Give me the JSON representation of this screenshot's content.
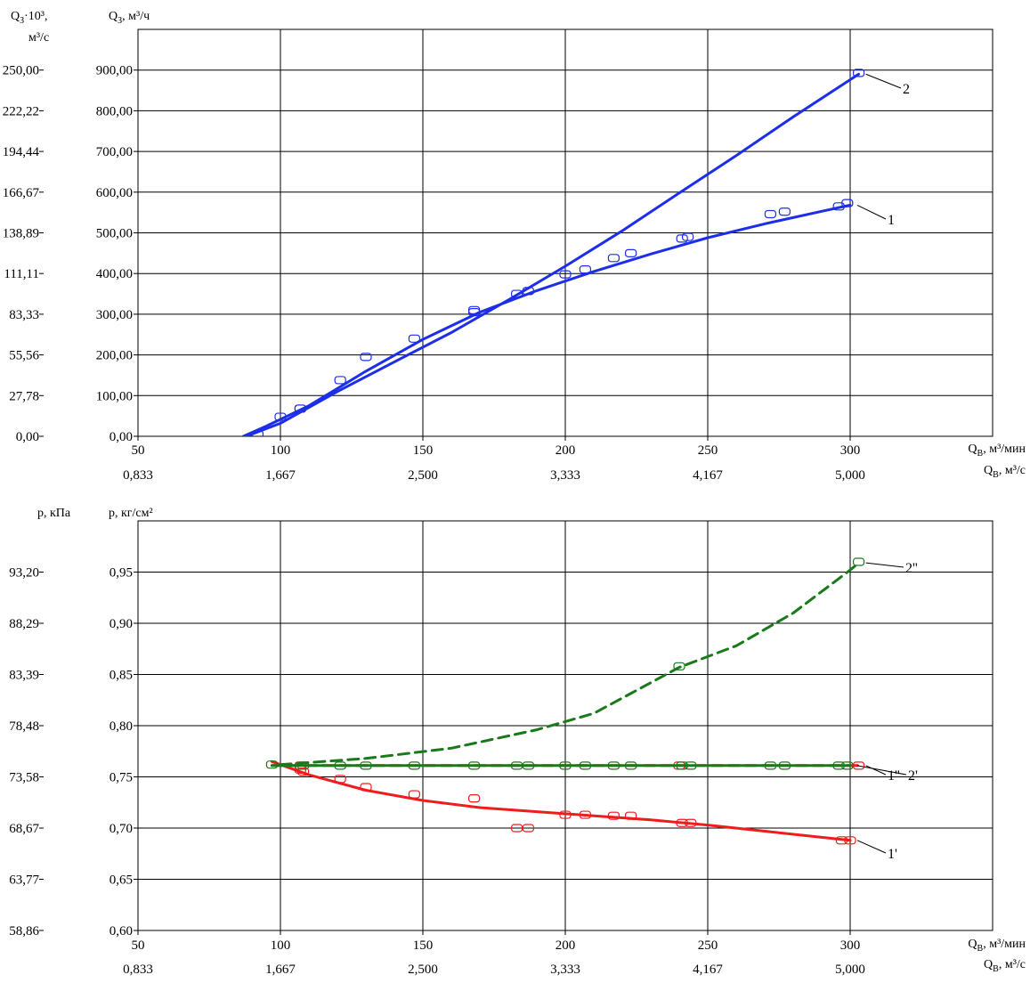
{
  "colors": {
    "blue": "#1c2ee8",
    "red": "#ee1c1c",
    "green": "#1a7a1a",
    "grid": "#000000"
  },
  "chart_data": [
    {
      "type": "line",
      "x_label_main": "Q",
      "x_label_main_sub": "В",
      "x_label_main_unit": ", м³/мин",
      "x_label_alt": "Q",
      "x_label_alt_sub": "В",
      "x_label_alt_unit": ", м³/с",
      "y_label_main": "Q",
      "y_label_main_sub": "З",
      "y_label_main_unit": ", м³/ч",
      "y_label_alt_line1": "·10³,",
      "y_label_alt_line1_prefix": "Q",
      "y_label_alt_line1_sub": "З",
      "y_label_alt_line2": "м³/с",
      "xlim": [
        50,
        350
      ],
      "ylim": [
        0,
        1000
      ],
      "x_ticks": [
        50,
        100,
        150,
        200,
        250,
        300
      ],
      "x_tick_labels": [
        "50",
        "100",
        "150",
        "200",
        "250",
        "300"
      ],
      "x_alt_tick_labels": [
        "0,833",
        "1,667",
        "2,500",
        "3,333",
        "4,167",
        "5,000"
      ],
      "y_ticks": [
        0,
        100,
        200,
        300,
        400,
        500,
        600,
        700,
        800,
        900
      ],
      "y_tick_labels": [
        "0,00",
        "100,00",
        "200,00",
        "300,00",
        "400,00",
        "500,00",
        "600,00",
        "700,00",
        "800,00",
        "900,00"
      ],
      "y_alt_tick_labels": [
        "0,00",
        "27,78",
        "55,56",
        "83,33",
        "111,11",
        "138,89",
        "166,67",
        "194,44",
        "222,22",
        "250,00"
      ],
      "grid": true,
      "series": [
        {
          "name": "1",
          "color": "blue",
          "dashed": false,
          "curve": [
            [
              87,
              0
            ],
            [
              95,
              25
            ],
            [
              110,
              75
            ],
            [
              130,
              160
            ],
            [
              150,
              238
            ],
            [
              170,
              305
            ],
            [
              190,
              358
            ],
            [
              210,
              405
            ],
            [
              230,
              448
            ],
            [
              250,
              488
            ],
            [
              270,
              522
            ],
            [
              290,
              553
            ],
            [
              300,
              568
            ]
          ],
          "points": [
            [
              92,
              5
            ],
            [
              100,
              48
            ],
            [
              107,
              68
            ],
            [
              121,
              138
            ],
            [
              147,
              240
            ],
            [
              168,
              305
            ],
            [
              183,
              350
            ],
            [
              187,
              357
            ],
            [
              200,
              398
            ],
            [
              207,
              410
            ],
            [
              217,
              438
            ],
            [
              223,
              450
            ],
            [
              241,
              486
            ],
            [
              243,
              490
            ],
            [
              272,
              546
            ],
            [
              277,
              552
            ],
            [
              296,
              565
            ],
            [
              299,
              573
            ]
          ]
        },
        {
          "name": "2",
          "color": "blue",
          "dashed": false,
          "curve": [
            [
              88,
              0
            ],
            [
              100,
              32
            ],
            [
              120,
              110
            ],
            [
              140,
              183
            ],
            [
              160,
              255
            ],
            [
              180,
              335
            ],
            [
              200,
              418
            ],
            [
              220,
              505
            ],
            [
              240,
              598
            ],
            [
              260,
              690
            ],
            [
              280,
              785
            ],
            [
              303,
              890
            ]
          ],
          "points": [
            [
              107,
              68
            ],
            [
              130,
              195
            ],
            [
              168,
              310
            ],
            [
              303,
              893
            ]
          ]
        }
      ]
    },
    {
      "type": "line",
      "x_label_main": "Q",
      "x_label_main_sub": "В",
      "x_label_main_unit": ", м³/мин",
      "x_label_alt": "Q",
      "x_label_alt_sub": "В",
      "x_label_alt_unit": ", м³/с",
      "y_label_main": "p, кг/см²",
      "y_label_alt": "p, кПа",
      "xlim": [
        50,
        350
      ],
      "ylim": [
        0.6,
        1.0
      ],
      "x_ticks": [
        50,
        100,
        150,
        200,
        250,
        300
      ],
      "x_tick_labels": [
        "50",
        "100",
        "150",
        "200",
        "250",
        "300"
      ],
      "x_alt_tick_labels": [
        "0,833",
        "1,667",
        "2,500",
        "3,333",
        "4,167",
        "5,000"
      ],
      "y_ticks": [
        0.6,
        0.65,
        0.7,
        0.75,
        0.8,
        0.85,
        0.9,
        0.95
      ],
      "y_tick_labels": [
        "0,60",
        "0,65",
        "0,70",
        "0,75",
        "0,80",
        "0,85",
        "0,90",
        "0,95"
      ],
      "y_alt_tick_labels": [
        "58,86",
        "63,77",
        "68,67",
        "73,58",
        "78,48",
        "83,39",
        "88,29",
        "93,20"
      ],
      "grid": true,
      "series": [
        {
          "name": "1'",
          "color": "red",
          "dashed": false,
          "curve": [
            [
              97,
              0.765
            ],
            [
              110,
              0.752
            ],
            [
              130,
              0.737
            ],
            [
              150,
              0.727
            ],
            [
              170,
              0.72
            ],
            [
              190,
              0.716
            ],
            [
              210,
              0.712
            ],
            [
              230,
              0.708
            ],
            [
              250,
              0.703
            ],
            [
              270,
              0.697
            ],
            [
              290,
              0.691
            ],
            [
              300,
              0.688
            ]
          ],
          "points": [
            [
              107,
              0.757
            ],
            [
              108,
              0.755
            ],
            [
              121,
              0.748
            ],
            [
              130,
              0.74
            ],
            [
              147,
              0.733
            ],
            [
              168,
              0.729
            ],
            [
              183,
              0.7
            ],
            [
              187,
              0.7
            ],
            [
              200,
              0.713
            ],
            [
              207,
              0.713
            ],
            [
              217,
              0.712
            ],
            [
              223,
              0.712
            ],
            [
              241,
              0.705
            ],
            [
              244,
              0.705
            ],
            [
              297,
              0.688
            ],
            [
              300,
              0.688
            ]
          ]
        },
        {
          "name": "1''",
          "color": "red",
          "dashed": true,
          "curve": [
            [
              97,
              0.761
            ],
            [
              303,
              0.761
            ]
          ],
          "points": [
            [
              107,
              0.761
            ],
            [
              240,
              0.761
            ],
            [
              303,
              0.761
            ]
          ]
        },
        {
          "name": "2'",
          "color": "green",
          "dashed": false,
          "curve": [
            [
              97,
              0.761
            ],
            [
              300,
              0.761
            ]
          ],
          "points": [
            [
              97,
              0.762
            ],
            [
              108,
              0.761
            ],
            [
              121,
              0.761
            ],
            [
              130,
              0.761
            ],
            [
              147,
              0.761
            ],
            [
              168,
              0.761
            ],
            [
              183,
              0.761
            ],
            [
              187,
              0.761
            ],
            [
              200,
              0.761
            ],
            [
              207,
              0.761
            ],
            [
              217,
              0.761
            ],
            [
              223,
              0.761
            ],
            [
              241,
              0.761
            ],
            [
              244,
              0.761
            ],
            [
              272,
              0.761
            ],
            [
              277,
              0.761
            ],
            [
              296,
              0.761
            ],
            [
              299,
              0.761
            ]
          ]
        },
        {
          "name": "2''",
          "color": "green",
          "dashed": true,
          "curve": [
            [
              100,
              0.762
            ],
            [
              130,
              0.768
            ],
            [
              160,
              0.778
            ],
            [
              190,
              0.796
            ],
            [
              210,
              0.812
            ],
            [
              240,
              0.857
            ],
            [
              260,
              0.878
            ],
            [
              280,
              0.91
            ],
            [
              300,
              0.952
            ],
            [
              303,
              0.959
            ]
          ],
          "points": [
            [
              240,
              0.858
            ],
            [
              303,
              0.96
            ]
          ]
        }
      ]
    }
  ]
}
